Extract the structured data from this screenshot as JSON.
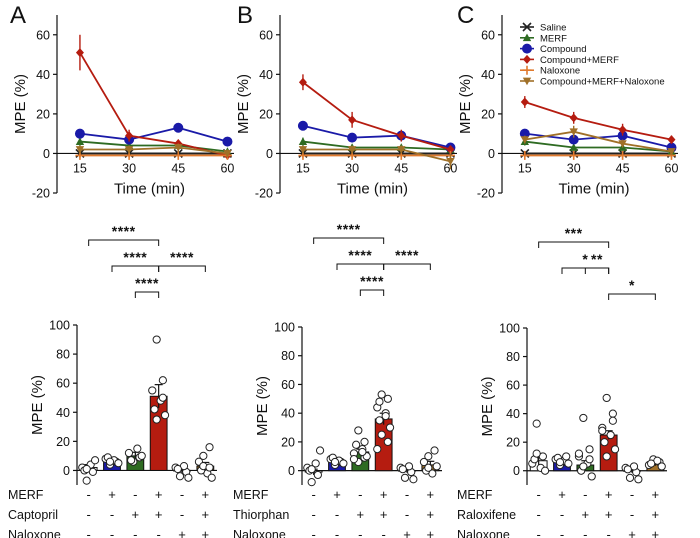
{
  "colors": {
    "Saline": "#222222",
    "MERF": "#2e6b22",
    "Compound": "#1a1aa8",
    "Compound+MERF": "#b51c10",
    "Naloxone": "#e07a2e",
    "Compound+MERF+Naloxone": "#a07028",
    "bars": [
      "#ffffff",
      "#1a1aa8",
      "#2e6b22",
      "#b51c10",
      "#ffffff",
      "#a07028"
    ]
  },
  "series_order": [
    "Saline",
    "MERF",
    "Compound",
    "Compound+MERF",
    "Naloxone",
    "Compound+MERF+Naloxone"
  ],
  "markers": {
    "Saline": "x",
    "MERF": "triangle",
    "Compound": "circle",
    "Compound+MERF": "diamond",
    "Naloxone": "plus",
    "Compound+MERF+Naloxone": "triangle-down"
  },
  "legend_series": [
    "Saline",
    "MERF",
    "Compound",
    "Compound+MERF",
    "Naloxone",
    "Compound+MERF+Naloxone"
  ],
  "chart_data": [
    {
      "type": "line",
      "panel": "A",
      "xlabel": "Time (min)",
      "ylabel": "MPE (%)",
      "x": [
        15,
        30,
        45,
        60
      ],
      "ylim": [
        -20,
        70
      ],
      "yticks": [
        -20,
        0,
        20,
        40,
        60
      ],
      "series": [
        {
          "name": "Saline",
          "values": [
            0,
            0,
            0,
            0
          ],
          "err": [
            0,
            0,
            0,
            0
          ]
        },
        {
          "name": "MERF",
          "values": [
            6,
            4,
            4,
            1
          ],
          "err": [
            2,
            1,
            1,
            1
          ]
        },
        {
          "name": "Compound",
          "values": [
            10,
            7,
            13,
            6
          ],
          "err": [
            1.5,
            1.5,
            1.5,
            1.5
          ]
        },
        {
          "name": "Compound+MERF",
          "values": [
            51,
            9,
            5,
            -1
          ],
          "err": [
            9,
            3,
            2,
            2
          ]
        },
        {
          "name": "Naloxone",
          "values": [
            -1,
            -1,
            -1,
            -1
          ],
          "err": [
            1,
            1,
            1,
            1
          ]
        },
        {
          "name": "Compound+MERF+Naloxone",
          "values": [
            2,
            2,
            3,
            0
          ],
          "err": [
            2,
            2,
            2,
            2
          ]
        }
      ]
    },
    {
      "type": "line",
      "panel": "B",
      "xlabel": "Time (min)",
      "ylabel": "MPE (%)",
      "x": [
        15,
        30,
        45,
        60
      ],
      "ylim": [
        -20,
        70
      ],
      "yticks": [
        -20,
        0,
        20,
        40,
        60
      ],
      "series": [
        {
          "name": "Saline",
          "values": [
            0,
            0,
            0,
            0
          ],
          "err": [
            0,
            0,
            0,
            0
          ]
        },
        {
          "name": "MERF",
          "values": [
            6,
            3,
            3,
            2
          ],
          "err": [
            2,
            1.5,
            1.5,
            1
          ]
        },
        {
          "name": "Compound",
          "values": [
            14,
            8,
            9,
            3
          ],
          "err": [
            1.5,
            1.5,
            1.5,
            1.5
          ]
        },
        {
          "name": "Compound+MERF",
          "values": [
            36,
            17,
            9,
            2
          ],
          "err": [
            4,
            4,
            3,
            2
          ]
        },
        {
          "name": "Naloxone",
          "values": [
            -1,
            -1,
            -1,
            -1
          ],
          "err": [
            1,
            1,
            1,
            1
          ]
        },
        {
          "name": "Compound+MERF+Naloxone",
          "values": [
            2,
            2,
            2,
            -4
          ],
          "err": [
            2,
            2,
            2,
            4
          ]
        }
      ]
    },
    {
      "type": "line",
      "panel": "C",
      "xlabel": "Time (min)",
      "ylabel": "MPE (%)",
      "x": [
        15,
        30,
        45,
        60
      ],
      "ylim": [
        -20,
        70
      ],
      "yticks": [
        -20,
        0,
        20,
        40,
        60
      ],
      "series": [
        {
          "name": "Saline",
          "values": [
            0,
            0,
            0,
            0
          ],
          "err": [
            0,
            0,
            0,
            0
          ]
        },
        {
          "name": "MERF",
          "values": [
            6,
            3,
            3,
            1
          ],
          "err": [
            2,
            1.5,
            1.5,
            1
          ]
        },
        {
          "name": "Compound",
          "values": [
            10,
            7,
            9,
            3
          ],
          "err": [
            2,
            2,
            2,
            2
          ]
        },
        {
          "name": "Compound+MERF",
          "values": [
            26,
            18,
            12,
            7
          ],
          "err": [
            3,
            3,
            3,
            2
          ]
        },
        {
          "name": "Naloxone",
          "values": [
            -1,
            -1,
            -1,
            -1
          ],
          "err": [
            1,
            1,
            1,
            1
          ]
        },
        {
          "name": "Compound+MERF+Naloxone",
          "values": [
            7,
            11,
            5,
            1
          ],
          "err": [
            2,
            3,
            2,
            1
          ]
        }
      ]
    },
    {
      "type": "bar",
      "panel": "A",
      "ylabel": "MPE (%)",
      "ylim": [
        -10,
        100
      ],
      "yticks": [
        0,
        20,
        40,
        60,
        80,
        100
      ],
      "values": [
        2,
        7,
        10,
        51,
        0,
        3
      ],
      "err": [
        2,
        1.5,
        2.5,
        8,
        1.5,
        2.5
      ],
      "points": [
        [
          -7,
          -1,
          2,
          4,
          0,
          7,
          1
        ],
        [
          4,
          6,
          8,
          7,
          9,
          5,
          6
        ],
        [
          6,
          9,
          12,
          15,
          7,
          10
        ],
        [
          90,
          62,
          55,
          48,
          42,
          38,
          35,
          50
        ],
        [
          -4,
          -1,
          2,
          3,
          1,
          -5
        ],
        [
          10,
          16,
          6,
          -2,
          0,
          -5,
          3,
          2
        ]
      ],
      "conditions": [
        {
          "label": "MERF",
          "signs": [
            "-",
            "+",
            "-",
            "+",
            "-",
            "+"
          ]
        },
        {
          "label": "Captopril",
          "signs": [
            "-",
            "-",
            "+",
            "+",
            "-",
            "+"
          ]
        },
        {
          "label": "Naloxone",
          "signs": [
            "-",
            "-",
            "-",
            "-",
            "+",
            "+"
          ]
        }
      ],
      "significance": [
        {
          "from": 0,
          "to": 3,
          "label": "****"
        },
        {
          "from": 1,
          "to": 3,
          "label": "****"
        },
        {
          "from": 3,
          "to": 5,
          "label": "****"
        },
        {
          "from": 2,
          "to": 3,
          "label": "****"
        }
      ]
    },
    {
      "type": "bar",
      "panel": "B",
      "ylabel": "MPE (%)",
      "ylim": [
        -10,
        100
      ],
      "yticks": [
        0,
        20,
        40,
        60,
        80,
        100
      ],
      "values": [
        -1,
        6,
        13,
        36,
        0,
        4
      ],
      "err": [
        2,
        1.5,
        2,
        4,
        1.5,
        2.5
      ],
      "points": [
        [
          -8,
          -3,
          2,
          5,
          0,
          14,
          1
        ],
        [
          4,
          6,
          8,
          7,
          9,
          5,
          6
        ],
        [
          6,
          9,
          12,
          15,
          18,
          10,
          28,
          20,
          8,
          13
        ],
        [
          53,
          50,
          44,
          40,
          35,
          30,
          25,
          20,
          15,
          38,
          48
        ],
        [
          -5,
          -1,
          2,
          3,
          1,
          -6
        ],
        [
          10,
          14,
          6,
          -2,
          0,
          3,
          2
        ]
      ],
      "conditions": [
        {
          "label": "MERF",
          "signs": [
            "-",
            "+",
            "-",
            "+",
            "-",
            "+"
          ]
        },
        {
          "label": "Thiorphan",
          "signs": [
            "-",
            "-",
            "+",
            "+",
            "-",
            "+"
          ]
        },
        {
          "label": "Naloxone",
          "signs": [
            "-",
            "-",
            "-",
            "-",
            "+",
            "+"
          ]
        }
      ],
      "significance": [
        {
          "from": 0,
          "to": 3,
          "label": "****"
        },
        {
          "from": 1,
          "to": 3,
          "label": "****"
        },
        {
          "from": 3,
          "to": 5,
          "label": "****"
        },
        {
          "from": 2,
          "to": 3,
          "label": "****"
        }
      ]
    },
    {
      "type": "bar",
      "panel": "C",
      "ylabel": "MPE (%)",
      "ylim": [
        -10,
        100
      ],
      "yticks": [
        0,
        20,
        40,
        60,
        80,
        100
      ],
      "values": [
        7,
        6,
        4,
        25,
        0,
        5
      ],
      "err": [
        3,
        1.5,
        3,
        3,
        1.5,
        1.5
      ],
      "points": [
        [
          33,
          10,
          5,
          2,
          8,
          0,
          12
        ],
        [
          4,
          6,
          8,
          7,
          9,
          5,
          6,
          10
        ],
        [
          37,
          15,
          10,
          5,
          0,
          -4,
          3,
          8,
          12
        ],
        [
          51,
          40,
          30,
          25,
          20,
          15,
          10,
          35,
          28
        ],
        [
          -5,
          -1,
          2,
          3,
          1,
          -6
        ],
        [
          8,
          6,
          4,
          7,
          5,
          3
        ]
      ],
      "conditions": [
        {
          "label": "MERF",
          "signs": [
            "-",
            "+",
            "-",
            "+",
            "-",
            "+"
          ]
        },
        {
          "label": "Raloxifene",
          "signs": [
            "-",
            "-",
            "+",
            "+",
            "-",
            "+"
          ]
        },
        {
          "label": "Naloxone",
          "signs": [
            "-",
            "-",
            "-",
            "-",
            "+",
            "+"
          ]
        }
      ],
      "significance": [
        {
          "from": 0,
          "to": 3,
          "label": "***"
        },
        {
          "from": 1,
          "to": 3,
          "label": "*"
        },
        {
          "from": 2,
          "to": 3,
          "label": "**"
        },
        {
          "from": 3,
          "to": 5,
          "label": "*"
        }
      ]
    }
  ]
}
